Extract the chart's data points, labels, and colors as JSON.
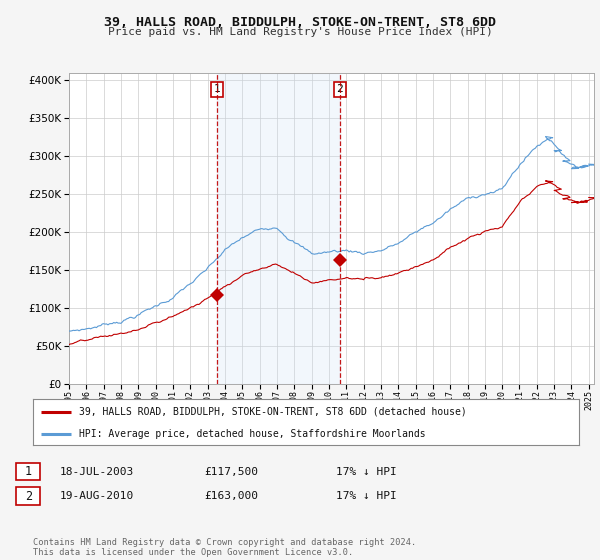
{
  "title": "39, HALLS ROAD, BIDDULPH, STOKE-ON-TRENT, ST8 6DD",
  "subtitle": "Price paid vs. HM Land Registry's House Price Index (HPI)",
  "legend_line1": "39, HALLS ROAD, BIDDULPH, STOKE-ON-TRENT, ST8 6DD (detached house)",
  "legend_line2": "HPI: Average price, detached house, Staffordshire Moorlands",
  "transaction1_date": "18-JUL-2003",
  "transaction1_price": "£117,500",
  "transaction1_hpi": "17% ↓ HPI",
  "transaction2_date": "19-AUG-2010",
  "transaction2_price": "£163,000",
  "transaction2_hpi": "17% ↓ HPI",
  "footer": "Contains HM Land Registry data © Crown copyright and database right 2024.\nThis data is licensed under the Open Government Licence v3.0.",
  "hpi_color": "#5b9bd5",
  "price_color": "#c00000",
  "vline_color": "#c00000",
  "shade_color": "#cce0f5",
  "background_color": "#f5f5f5",
  "plot_background": "#ffffff",
  "ylim": [
    0,
    410000
  ],
  "yticks": [
    0,
    50000,
    100000,
    150000,
    200000,
    250000,
    300000,
    350000,
    400000
  ],
  "transaction1_x": 2003.54,
  "transaction1_y": 117500,
  "transaction2_x": 2010.64,
  "transaction2_y": 163000,
  "xlim_left": 1995.0,
  "xlim_right": 2025.3
}
